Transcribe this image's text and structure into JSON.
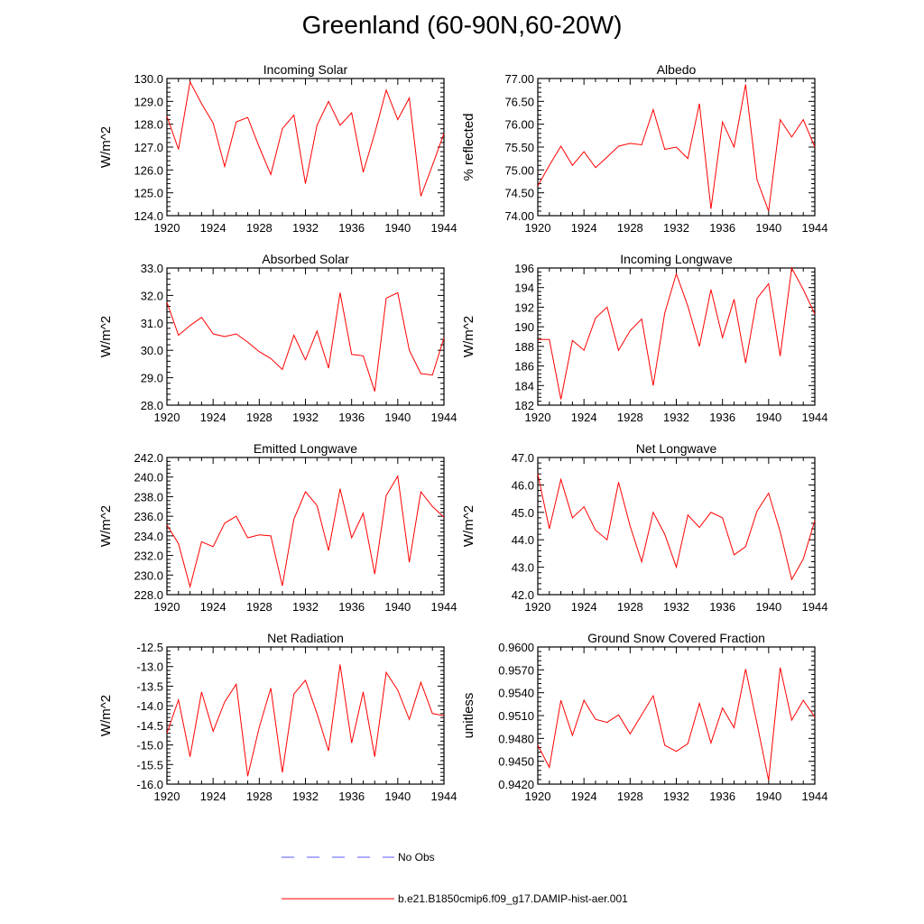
{
  "figure": {
    "title": "Greenland (60-90N,60-20W)",
    "legend": [
      {
        "label": "No Obs",
        "style": "dashed",
        "color": "#5a5aff"
      },
      {
        "label": "b.e21.B1850cmip6.f09_g17.DAMIP-hist-aer.001",
        "style": "solid",
        "color": "#ff0000"
      }
    ]
  },
  "chart_data": [
    {
      "type": "line",
      "title": "Incoming Solar",
      "ylabel": "W/m^2",
      "xlim": [
        1920,
        1944
      ],
      "ylim": [
        124.0,
        130.0
      ],
      "xticks": [
        1920,
        1924,
        1928,
        1932,
        1936,
        1940,
        1944
      ],
      "yticks": [
        "124.0",
        "125.0",
        "126.0",
        "127.0",
        "128.0",
        "129.0",
        "130.0"
      ],
      "x": [
        1920,
        1921,
        1922,
        1923,
        1924,
        1925,
        1926,
        1927,
        1928,
        1929,
        1930,
        1931,
        1932,
        1933,
        1934,
        1935,
        1936,
        1937,
        1938,
        1939,
        1940,
        1941,
        1942,
        1943,
        1944
      ],
      "series": [
        {
          "values": [
            128.35,
            126.9,
            129.85,
            128.9,
            128.05,
            126.15,
            128.1,
            128.3,
            127.0,
            125.8,
            127.8,
            128.4,
            125.4,
            127.95,
            129.0,
            127.95,
            128.5,
            125.9,
            127.6,
            129.5,
            128.2,
            129.15,
            124.85,
            126.2,
            127.6
          ],
          "color": "#ff0000"
        }
      ]
    },
    {
      "type": "line",
      "title": "Albedo",
      "ylabel": "% reflected",
      "xlim": [
        1920,
        1944
      ],
      "ylim": [
        74.0,
        77.0
      ],
      "xticks": [
        1920,
        1924,
        1928,
        1932,
        1936,
        1940,
        1944
      ],
      "yticks": [
        "74.00",
        "74.50",
        "75.00",
        "75.50",
        "76.00",
        "76.50",
        "77.00"
      ],
      "x": [
        1920,
        1921,
        1922,
        1923,
        1924,
        1925,
        1926,
        1927,
        1928,
        1929,
        1930,
        1931,
        1932,
        1933,
        1934,
        1935,
        1936,
        1937,
        1938,
        1939,
        1940,
        1941,
        1942,
        1943,
        1944
      ],
      "series": [
        {
          "values": [
            74.65,
            75.1,
            75.52,
            75.1,
            75.4,
            75.05,
            75.28,
            75.52,
            75.58,
            75.55,
            76.32,
            75.45,
            75.5,
            75.25,
            76.45,
            74.15,
            76.05,
            75.5,
            76.87,
            74.78,
            74.1,
            76.1,
            75.72,
            76.1,
            75.5
          ],
          "color": "#ff0000"
        }
      ]
    },
    {
      "type": "line",
      "title": "Absorbed Solar",
      "ylabel": "W/m^2",
      "xlim": [
        1920,
        1944
      ],
      "ylim": [
        28.0,
        33.0
      ],
      "xticks": [
        1920,
        1924,
        1928,
        1932,
        1936,
        1940,
        1944
      ],
      "yticks": [
        "28.0",
        "29.0",
        "30.0",
        "31.0",
        "32.0",
        "33.0"
      ],
      "x": [
        1920,
        1921,
        1922,
        1923,
        1924,
        1925,
        1926,
        1927,
        1928,
        1929,
        1930,
        1931,
        1932,
        1933,
        1934,
        1935,
        1936,
        1937,
        1938,
        1939,
        1940,
        1941,
        1942,
        1943,
        1944
      ],
      "series": [
        {
          "values": [
            31.75,
            30.55,
            30.9,
            31.2,
            30.6,
            30.5,
            30.6,
            30.3,
            29.95,
            29.7,
            29.3,
            30.55,
            29.65,
            30.7,
            29.35,
            32.1,
            29.85,
            29.8,
            28.5,
            31.9,
            32.1,
            30.0,
            29.15,
            29.1,
            30.45
          ],
          "color": "#ff0000"
        }
      ]
    },
    {
      "type": "line",
      "title": "Incoming Longwave",
      "ylabel": "W/m^2",
      "xlim": [
        1920,
        1944
      ],
      "ylim": [
        182,
        196
      ],
      "xticks": [
        1920,
        1924,
        1928,
        1932,
        1936,
        1940,
        1944
      ],
      "yticks": [
        "182",
        "184",
        "186",
        "188",
        "190",
        "192",
        "194",
        "196"
      ],
      "x": [
        1920,
        1921,
        1922,
        1923,
        1924,
        1925,
        1926,
        1927,
        1928,
        1929,
        1930,
        1931,
        1932,
        1933,
        1934,
        1935,
        1936,
        1937,
        1938,
        1939,
        1940,
        1941,
        1942,
        1943,
        1944
      ],
      "series": [
        {
          "values": [
            188.7,
            188.7,
            182.6,
            188.6,
            187.6,
            190.9,
            192.0,
            187.6,
            189.6,
            190.8,
            184.0,
            191.4,
            195.4,
            192.1,
            188.0,
            193.8,
            188.9,
            192.8,
            186.3,
            192.9,
            194.4,
            187.0,
            196.0,
            193.8,
            191.3
          ],
          "color": "#ff0000"
        }
      ]
    },
    {
      "type": "line",
      "title": "Emitted Longwave",
      "ylabel": "W/m^2",
      "xlim": [
        1920,
        1944
      ],
      "ylim": [
        228.0,
        242.0
      ],
      "xticks": [
        1920,
        1924,
        1928,
        1932,
        1936,
        1940,
        1944
      ],
      "yticks": [
        "228.0",
        "230.0",
        "232.0",
        "234.0",
        "236.0",
        "238.0",
        "240.0",
        "242.0"
      ],
      "x": [
        1920,
        1921,
        1922,
        1923,
        1924,
        1925,
        1926,
        1927,
        1928,
        1929,
        1930,
        1931,
        1932,
        1933,
        1934,
        1935,
        1936,
        1937,
        1938,
        1939,
        1940,
        1941,
        1942,
        1943,
        1944
      ],
      "series": [
        {
          "values": [
            235.1,
            233.2,
            228.8,
            233.4,
            232.9,
            235.3,
            236.0,
            233.8,
            234.1,
            234.0,
            228.9,
            235.7,
            238.5,
            237.1,
            232.5,
            238.8,
            233.8,
            236.3,
            230.1,
            238.1,
            240.1,
            231.3,
            238.5,
            237.0,
            235.9
          ],
          "color": "#ff0000"
        }
      ]
    },
    {
      "type": "line",
      "title": "Net Longwave",
      "ylabel": "W/m^2",
      "xlim": [
        1920,
        1944
      ],
      "ylim": [
        42.0,
        47.0
      ],
      "xticks": [
        1920,
        1924,
        1928,
        1932,
        1936,
        1940,
        1944
      ],
      "yticks": [
        "42.0",
        "43.0",
        "44.0",
        "45.0",
        "46.0",
        "47.0"
      ],
      "x": [
        1920,
        1921,
        1922,
        1923,
        1924,
        1925,
        1926,
        1927,
        1928,
        1929,
        1930,
        1931,
        1932,
        1933,
        1934,
        1935,
        1936,
        1937,
        1938,
        1939,
        1940,
        1941,
        1942,
        1943,
        1944
      ],
      "series": [
        {
          "values": [
            46.4,
            44.4,
            46.2,
            44.8,
            45.2,
            44.35,
            44.0,
            46.1,
            44.5,
            43.2,
            45.0,
            44.2,
            43.0,
            44.9,
            44.45,
            45.0,
            44.8,
            43.45,
            43.75,
            45.05,
            45.7,
            44.3,
            42.55,
            43.3,
            44.7
          ],
          "color": "#ff0000"
        }
      ]
    },
    {
      "type": "line",
      "title": "Net Radiation",
      "ylabel": "W/m^2",
      "xlim": [
        1920,
        1944
      ],
      "ylim": [
        -16.0,
        -12.5
      ],
      "xticks": [
        1920,
        1924,
        1928,
        1932,
        1936,
        1940,
        1944
      ],
      "yticks": [
        "-16.0",
        "-15.5",
        "-15.0",
        "-14.5",
        "-14.0",
        "-13.5",
        "-13.0",
        "-12.5"
      ],
      "x": [
        1920,
        1921,
        1922,
        1923,
        1924,
        1925,
        1926,
        1927,
        1928,
        1929,
        1930,
        1931,
        1932,
        1933,
        1934,
        1935,
        1936,
        1937,
        1938,
        1939,
        1940,
        1941,
        1942,
        1943,
        1944
      ],
      "series": [
        {
          "values": [
            -14.7,
            -13.85,
            -15.3,
            -13.65,
            -14.65,
            -13.9,
            -13.45,
            -15.8,
            -14.55,
            -13.55,
            -15.7,
            -13.7,
            -13.35,
            -14.2,
            -15.15,
            -12.95,
            -14.95,
            -13.65,
            -15.3,
            -13.15,
            -13.6,
            -14.35,
            -13.4,
            -14.2,
            -14.25
          ],
          "color": "#ff0000"
        }
      ]
    },
    {
      "type": "line",
      "title": "Ground Snow Covered Fraction",
      "ylabel": "unitless",
      "xlim": [
        1920,
        1944
      ],
      "ylim": [
        0.942,
        0.96
      ],
      "xticks": [
        1920,
        1924,
        1928,
        1932,
        1936,
        1940,
        1944
      ],
      "yticks": [
        "0.9420",
        "0.9450",
        "0.9480",
        "0.9510",
        "0.9540",
        "0.9570",
        "0.9600"
      ],
      "x": [
        1920,
        1921,
        1922,
        1923,
        1924,
        1925,
        1926,
        1927,
        1928,
        1929,
        1930,
        1931,
        1932,
        1933,
        1934,
        1935,
        1936,
        1937,
        1938,
        1939,
        1940,
        1941,
        1942,
        1943,
        1944
      ],
      "series": [
        {
          "values": [
            0.9471,
            0.9442,
            0.953,
            0.9484,
            0.953,
            0.9505,
            0.9501,
            0.9511,
            0.9486,
            0.9511,
            0.9536,
            0.9471,
            0.9463,
            0.9473,
            0.9526,
            0.9474,
            0.952,
            0.9494,
            0.9571,
            0.9499,
            0.9425,
            0.9573,
            0.9504,
            0.953,
            0.9508
          ],
          "color": "#ff0000"
        }
      ]
    }
  ]
}
